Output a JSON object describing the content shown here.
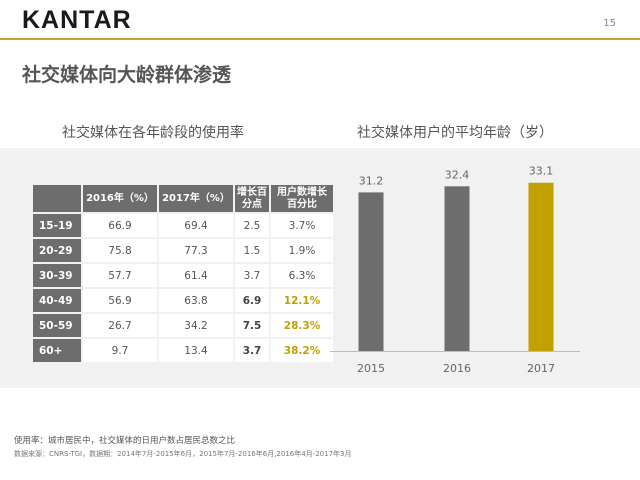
{
  "header": {
    "logo": "KANTAR",
    "page_number": "15"
  },
  "slide_title": "社交媒体向大龄群体渗透",
  "table_title": "社交媒体在各年龄段的使用率",
  "chart_title": "社交媒体用户的平均年龄（岁）",
  "table": {
    "headers": [
      "",
      "2016年（%）",
      "2017年（%）",
      "增长百分点",
      "用户数增长百分比"
    ],
    "rows": [
      [
        "15-19",
        "66.9",
        "69.4",
        "2.5",
        "3.7%"
      ],
      [
        "20-29",
        "75.8",
        "77.3",
        "1.5",
        "1.9%"
      ],
      [
        "30-39",
        "57.7",
        "61.4",
        "3.7",
        "6.3%"
      ],
      [
        "40-49",
        "56.9",
        "63.8",
        "6.9",
        "12.1%"
      ],
      [
        "50-59",
        "26.7",
        "34.2",
        "7.5",
        "28.3%"
      ],
      [
        "60+",
        "9.7",
        "13.4",
        "3.7",
        "38.2%"
      ]
    ]
  },
  "chart_data": {
    "type": "bar",
    "title": "社交媒体用户的平均年龄（岁）",
    "categories": [
      "2015",
      "2016",
      "2017"
    ],
    "values": [
      31.2,
      32.4,
      33.1
    ],
    "value_labels": [
      "31.2",
      "32.4",
      "33.1"
    ],
    "ylim": [
      0,
      36
    ],
    "colors": [
      "#6d6d6d",
      "#6d6d6d",
      "#c2a000"
    ]
  },
  "footnote": {
    "definition": "使用率：城市居民中，社交媒体的日用户数占居民总数之比",
    "source": "数据来源：CNRS-TGI，数据期：2014年7月-2015年6月，2015年7月-2016年6月,2016年4月-2017年3月"
  }
}
